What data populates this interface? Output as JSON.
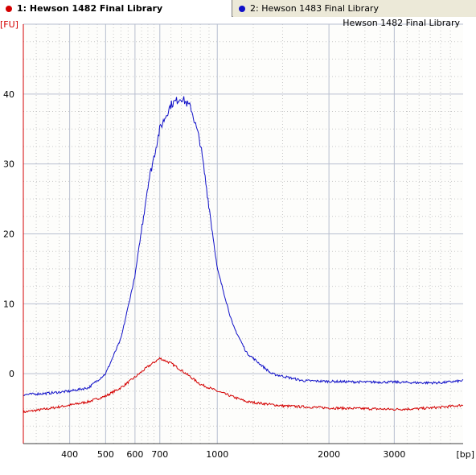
{
  "tabs": [
    {
      "label": "1: Hewson 1482 Final Library",
      "color": "#d40000",
      "selected": true
    },
    {
      "label": "2: Hewson 1483 Final Library",
      "color": "#1010c8",
      "selected": false
    }
  ],
  "chart_data": {
    "type": "line",
    "title": "Hewson 1482 Final Library",
    "ylabel": "[FU]",
    "xlabel": "[bp]",
    "xscale": "log",
    "xlim": [
      300,
      4600
    ],
    "ylim": [
      -10,
      50
    ],
    "yticks": [
      0,
      10,
      20,
      30,
      40
    ],
    "xticks": [
      400,
      500,
      600,
      700,
      1000,
      2000,
      3000
    ],
    "grid": true,
    "series": [
      {
        "name": "1: Hewson 1482 Final Library",
        "color": "#d40000",
        "x": [
          300,
          350,
          400,
          450,
          500,
          550,
          600,
          650,
          700,
          750,
          800,
          900,
          1000,
          1200,
          1500,
          2000,
          2500,
          3000,
          3500,
          4000,
          4600
        ],
        "y": [
          -5.5,
          -5.0,
          -4.5,
          -4.0,
          -3.2,
          -2.0,
          -0.5,
          1.0,
          2.2,
          1.5,
          0.5,
          -1.5,
          -2.5,
          -4.0,
          -4.6,
          -4.9,
          -5.0,
          -5.1,
          -5.0,
          -4.8,
          -4.5
        ]
      },
      {
        "name": "2: Hewson 1483 Final Library",
        "color": "#1010c8",
        "x": [
          300,
          350,
          400,
          450,
          500,
          550,
          600,
          650,
          700,
          750,
          800,
          850,
          900,
          950,
          1000,
          1100,
          1200,
          1400,
          1700,
          2000,
          2500,
          3000,
          3500,
          4000,
          4600
        ],
        "y": [
          -3.0,
          -2.8,
          -2.5,
          -2.0,
          0.0,
          5.0,
          14.0,
          27.0,
          35.0,
          38.5,
          39.5,
          38.0,
          33.0,
          24.0,
          15.0,
          7.0,
          3.0,
          0.0,
          -1.0,
          -1.1,
          -1.2,
          -1.2,
          -1.3,
          -1.3,
          -1.0
        ]
      }
    ]
  }
}
